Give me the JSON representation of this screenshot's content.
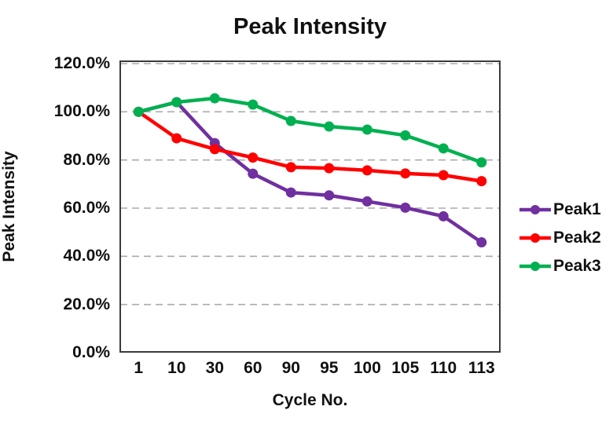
{
  "chart_data": {
    "type": "line",
    "title": "Peak Intensity",
    "xlabel": "Cycle No.",
    "ylabel": "Peak Intensity",
    "categories": [
      "1",
      "10",
      "30",
      "60",
      "90",
      "95",
      "100",
      "105",
      "110",
      "113"
    ],
    "series": [
      {
        "name": "Peak1",
        "color": "#7030A0",
        "values": [
          100.0,
          104.0,
          87.0,
          74.3,
          66.5,
          65.3,
          62.8,
          60.2,
          56.6,
          45.8
        ]
      },
      {
        "name": "Peak2",
        "color": "#FF0000",
        "values": [
          100.0,
          89.0,
          84.5,
          81.0,
          77.0,
          76.6,
          75.7,
          74.4,
          73.7,
          71.2
        ]
      },
      {
        "name": "Peak3",
        "color": "#00B050",
        "values": [
          100.0,
          104.0,
          105.6,
          103.0,
          96.2,
          93.9,
          92.6,
          90.2,
          84.8,
          79.0
        ]
      }
    ],
    "ylim": [
      0,
      120
    ],
    "ytick_step": 20,
    "ytick_labels": [
      "120.0%",
      "100.0%",
      "80.0%",
      "60.0%",
      "40.0%",
      "20.0%",
      "0.0%"
    ],
    "grid": "horizontal-dashed",
    "legend_position": "right",
    "styles": {
      "grid_color": "#ababab",
      "border_color": "#3b3b3b",
      "text_color": "#111111"
    }
  }
}
